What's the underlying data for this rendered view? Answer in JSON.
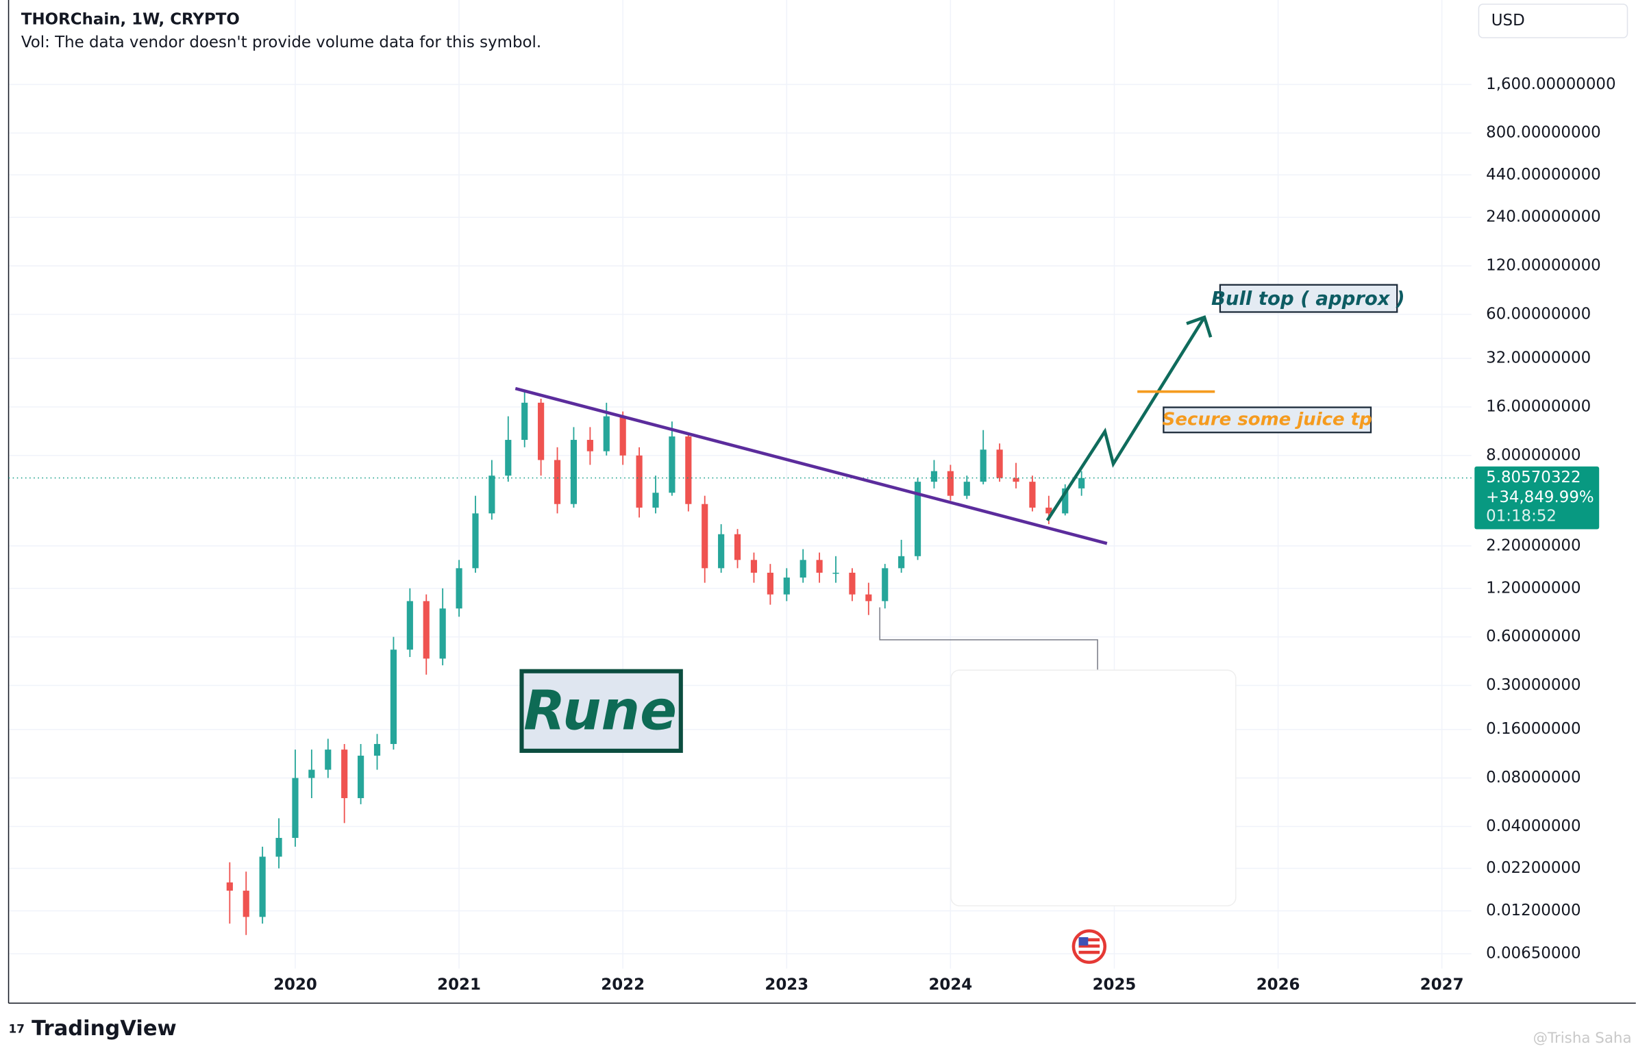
{
  "header": {
    "title": "THORChain, 1W, CRYPTO",
    "volume_note": "Vol: The data vendor doesn't provide volume data for this symbol.",
    "currency": "USD"
  },
  "chart_data": {
    "type": "candlestick",
    "x": [
      2019.6,
      2019.7,
      2019.8,
      2019.9,
      2020.0,
      2020.1,
      2020.2,
      2020.3,
      2020.4,
      2020.5,
      2020.6,
      2020.7,
      2020.8,
      2020.9,
      2021.0,
      2021.1,
      2021.2,
      2021.3,
      2021.4,
      2021.5,
      2021.6,
      2021.7,
      2021.8,
      2021.9,
      2022.0,
      2022.1,
      2022.2,
      2022.3,
      2022.4,
      2022.5,
      2022.6,
      2022.7,
      2022.8,
      2022.9,
      2023.0,
      2023.1,
      2023.2,
      2023.3,
      2023.4,
      2023.5,
      2023.6,
      2023.7,
      2023.8,
      2023.9,
      2024.0,
      2024.1,
      2024.2,
      2024.3,
      2024.4,
      2024.5,
      2024.6,
      2024.7,
      2024.8
    ],
    "open": [
      0.018,
      0.016,
      0.011,
      0.026,
      0.034,
      0.08,
      0.09,
      0.12,
      0.06,
      0.11,
      0.13,
      0.5,
      1.0,
      0.44,
      0.9,
      1.6,
      3.5,
      6,
      10,
      17,
      7.5,
      4,
      10,
      8.5,
      14,
      8,
      3.8,
      4.7,
      10.5,
      4,
      1.6,
      2.6,
      1.8,
      1.5,
      1.1,
      1.4,
      1.8,
      1.5,
      1.5,
      1.1,
      1.0,
      1.6,
      1.9,
      5.5,
      6.4,
      4.5,
      5.5,
      8.7,
      5.8,
      5.5,
      3.8,
      3.5,
      5
    ],
    "high": [
      0.024,
      0.021,
      0.03,
      0.045,
      0.12,
      0.12,
      0.14,
      0.13,
      0.13,
      0.15,
      0.6,
      1.2,
      1.1,
      1.2,
      1.8,
      4.5,
      7.5,
      14,
      20,
      18,
      9,
      12,
      12,
      17,
      15,
      9,
      6,
      13,
      11,
      4.5,
      3,
      2.8,
      2,
      1.7,
      1.6,
      2.1,
      2,
      1.9,
      1.6,
      1.3,
      1.7,
      2.4,
      5.8,
      7.5,
      7,
      6,
      11.5,
      9.5,
      7.2,
      6,
      4.5,
      5.3,
      6.4
    ],
    "low": [
      0.01,
      0.0085,
      0.01,
      0.022,
      0.03,
      0.06,
      0.08,
      0.042,
      0.055,
      0.09,
      0.12,
      0.45,
      0.35,
      0.4,
      0.8,
      1.5,
      3.2,
      5.5,
      9,
      6,
      3.5,
      3.8,
      7,
      8,
      7,
      3.3,
      3.5,
      4.5,
      3.6,
      1.3,
      1.5,
      1.6,
      1.3,
      0.95,
      1.0,
      1.3,
      1.3,
      1.3,
      1.0,
      0.82,
      0.9,
      1.5,
      1.8,
      5,
      4.2,
      4.3,
      5.3,
      5.5,
      5,
      3.6,
      3.0,
      3.4,
      4.5
    ],
    "close": [
      0.016,
      0.011,
      0.026,
      0.034,
      0.08,
      0.09,
      0.12,
      0.06,
      0.11,
      0.13,
      0.5,
      1.0,
      0.44,
      0.9,
      1.6,
      3.5,
      6,
      10,
      17,
      7.5,
      4,
      10,
      8.5,
      14,
      8,
      3.8,
      4.7,
      10.5,
      4,
      1.6,
      2.6,
      1.8,
      1.5,
      1.1,
      1.4,
      1.8,
      1.5,
      1.5,
      1.1,
      1.0,
      1.6,
      1.9,
      5.5,
      6.4,
      4.5,
      5.5,
      8.7,
      5.8,
      5.5,
      3.8,
      3.5,
      5,
      5.8
    ],
    "up_color": "#26a69a",
    "down_color": "#ef5350",
    "xlim": [
      2018.25,
      2027.18
    ],
    "xticks": [
      2020,
      2021,
      2022,
      2023,
      2024,
      2025,
      2026,
      2027
    ],
    "ylim": [
      0.00526,
      5346
    ],
    "log_scale": true,
    "grid": true,
    "yticks": [
      {
        "value": 1600,
        "label": "1,600.00000000"
      },
      {
        "value": 800,
        "label": "800.00000000"
      },
      {
        "value": 440,
        "label": "440.00000000"
      },
      {
        "value": 240,
        "label": "240.00000000"
      },
      {
        "value": 120,
        "label": "120.00000000"
      },
      {
        "value": 60,
        "label": "60.00000000"
      },
      {
        "value": 32,
        "label": "32.00000000"
      },
      {
        "value": 16,
        "label": "16.00000000"
      },
      {
        "value": 8,
        "label": "8.00000000"
      },
      {
        "value": 2.2,
        "label": "2.20000000"
      },
      {
        "value": 1.2,
        "label": "1.20000000"
      },
      {
        "value": 0.6,
        "label": "0.60000000"
      },
      {
        "value": 0.3,
        "label": "0.30000000"
      },
      {
        "value": 0.16,
        "label": "0.16000000"
      },
      {
        "value": 0.08,
        "label": "0.08000000"
      },
      {
        "value": 0.04,
        "label": "0.04000000"
      },
      {
        "value": 0.022,
        "label": "0.02200000"
      },
      {
        "value": 0.012,
        "label": "0.01200000"
      },
      {
        "value": 0.0065,
        "label": "0.00650000"
      }
    ],
    "last_price": 5.80570322,
    "change_label": "+34,849.99%",
    "countdown": "01:18:52",
    "annotations": {
      "bull_top": "Bull top ( approx )",
      "take_profit": "Secure some juice tp",
      "name": "Rune"
    }
  },
  "footer": {
    "brand": "TradingView",
    "watermark": "@Trisha Saha"
  }
}
